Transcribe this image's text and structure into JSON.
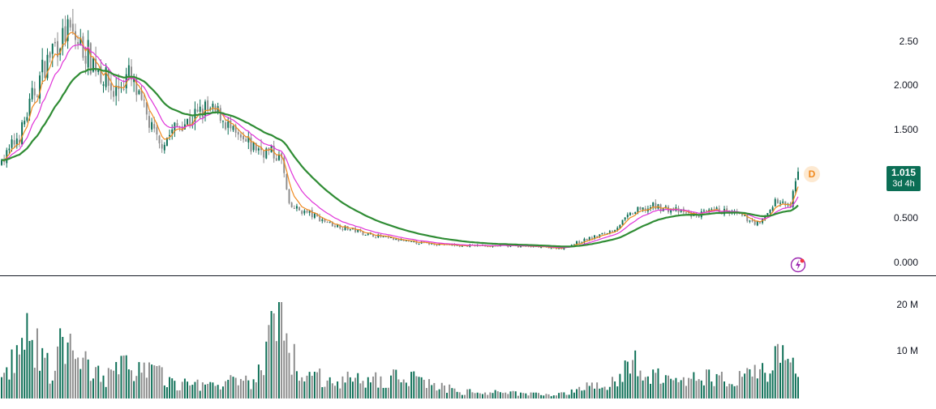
{
  "colors": {
    "up": "#0b6e55",
    "down": "#8c8c8c",
    "ema_fast": "#f0891e",
    "ema_mid": "#e033d8",
    "ema_slow": "#2f8c34",
    "volume_up": "#0b6e55",
    "volume_down": "#8c8c8c",
    "badge_bg": "#0b6e55",
    "accent_bolt": "#9c27b0"
  },
  "price_axis": {
    "labels": [
      "2.50",
      "2.000",
      "1.500",
      "1.015",
      "0.500",
      "0.000"
    ]
  },
  "volume_axis": {
    "labels": [
      "20 M",
      "10 M"
    ]
  },
  "current_price": {
    "value": "1.015",
    "countdown": "3d 4h"
  },
  "badges": {
    "d_marker": "D"
  },
  "icons": {
    "bolt": "lightning-icon"
  },
  "chart_data": {
    "type": "candlestick",
    "title": "",
    "xlabel": "",
    "ylabel": "",
    "ylim": [
      0,
      2.9
    ],
    "volume_ylim": [
      0,
      21
    ],
    "grid": false,
    "key_points": [
      {
        "x": 0,
        "close": 1.1
      },
      {
        "x": 8,
        "close": 1.5
      },
      {
        "x": 14,
        "close": 2.0
      },
      {
        "x": 20,
        "close": 2.4
      },
      {
        "x": 26,
        "close": 2.6
      },
      {
        "x": 32,
        "close": 2.4
      },
      {
        "x": 38,
        "close": 2.2
      },
      {
        "x": 44,
        "close": 1.9
      },
      {
        "x": 50,
        "close": 2.1
      },
      {
        "x": 56,
        "close": 1.7
      },
      {
        "x": 62,
        "close": 1.3
      },
      {
        "x": 68,
        "close": 1.5
      },
      {
        "x": 74,
        "close": 1.6
      },
      {
        "x": 80,
        "close": 1.7
      },
      {
        "x": 86,
        "close": 1.65
      },
      {
        "x": 92,
        "close": 1.4
      },
      {
        "x": 98,
        "close": 1.3
      },
      {
        "x": 104,
        "close": 1.25
      },
      {
        "x": 110,
        "close": 1.15
      },
      {
        "x": 113,
        "close": 0.62
      },
      {
        "x": 120,
        "close": 0.55
      },
      {
        "x": 130,
        "close": 0.42
      },
      {
        "x": 145,
        "close": 0.3
      },
      {
        "x": 160,
        "close": 0.22
      },
      {
        "x": 180,
        "close": 0.18
      },
      {
        "x": 200,
        "close": 0.18
      },
      {
        "x": 220,
        "close": 0.15
      },
      {
        "x": 230,
        "close": 0.25
      },
      {
        "x": 240,
        "close": 0.35
      },
      {
        "x": 248,
        "close": 0.55
      },
      {
        "x": 256,
        "close": 0.62
      },
      {
        "x": 264,
        "close": 0.58
      },
      {
        "x": 272,
        "close": 0.52
      },
      {
        "x": 282,
        "close": 0.58
      },
      {
        "x": 290,
        "close": 0.52
      },
      {
        "x": 298,
        "close": 0.42
      },
      {
        "x": 304,
        "close": 0.68
      },
      {
        "x": 310,
        "close": 0.62
      },
      {
        "x": 313,
        "close": 1.015
      }
    ],
    "volume_key_points": [
      {
        "x": 0,
        "v": 4
      },
      {
        "x": 10,
        "v": 14
      },
      {
        "x": 20,
        "v": 6
      },
      {
        "x": 22,
        "v": 12
      },
      {
        "x": 40,
        "v": 5
      },
      {
        "x": 52,
        "v": 8
      },
      {
        "x": 70,
        "v": 3
      },
      {
        "x": 100,
        "v": 4
      },
      {
        "x": 110,
        "v": 20
      },
      {
        "x": 111,
        "v": 12
      },
      {
        "x": 120,
        "v": 5
      },
      {
        "x": 140,
        "v": 4
      },
      {
        "x": 160,
        "v": 5
      },
      {
        "x": 180,
        "v": 1.5
      },
      {
        "x": 220,
        "v": 1
      },
      {
        "x": 240,
        "v": 4
      },
      {
        "x": 250,
        "v": 8
      },
      {
        "x": 260,
        "v": 4
      },
      {
        "x": 300,
        "v": 6
      },
      {
        "x": 304,
        "v": 9
      },
      {
        "x": 313,
        "v": 7
      }
    ],
    "series": [
      {
        "kind": "ema_fast"
      },
      {
        "kind": "ema_mid"
      },
      {
        "kind": "ema_slow"
      }
    ]
  }
}
